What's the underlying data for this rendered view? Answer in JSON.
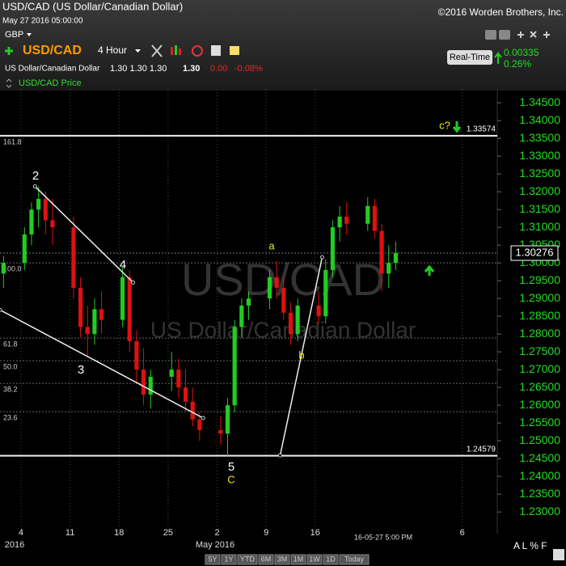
{
  "header": {
    "title": "USD/CAD (US Dollar/Canadian Dollar)",
    "datetime": "May 27 2016 05:00:00",
    "copyright": "©2016 Worden Brothers, Inc."
  },
  "toolbar": {
    "currency": "GBP",
    "symbol": "USD/CAD",
    "interval": "4 Hour",
    "name": "US Dollar/Canadian Dollar",
    "ohl": "1.30 1.30 1.30",
    "last": "1.30",
    "change": "0.00",
    "change_pct": "-0.08%",
    "feed": "Real-Time",
    "rt_change": "0.00335",
    "rt_pct": "0.26%"
  },
  "chart_data": {
    "type": "candlestick",
    "legend": "USD/CAD Price",
    "watermark": "USD/CAD",
    "watermark_subtitle": "US Dollar/Canadian Dollar",
    "up_color": "#22cc22",
    "down_color": "#dd1111",
    "x": [
      "2016-04-01",
      "2016-04-04",
      "2016-04-05",
      "2016-04-06",
      "2016-04-07",
      "2016-04-08",
      "2016-04-11",
      "2016-04-12",
      "2016-04-13",
      "2016-04-14",
      "2016-04-15",
      "2016-04-18",
      "2016-04-19",
      "2016-04-20",
      "2016-04-21",
      "2016-04-22",
      "2016-04-25",
      "2016-04-26",
      "2016-04-27",
      "2016-04-28",
      "2016-04-29",
      "2016-05-02",
      "2016-05-03",
      "2016-05-04",
      "2016-05-05",
      "2016-05-06",
      "2016-05-09",
      "2016-05-10",
      "2016-05-11",
      "2016-05-12",
      "2016-05-13",
      "2016-05-16",
      "2016-05-17",
      "2016-05-18",
      "2016-05-19",
      "2016-05-20",
      "2016-05-23",
      "2016-05-24",
      "2016-05-25",
      "2016-05-26",
      "2016-05-27"
    ],
    "open": [
      1.297,
      1.3,
      1.308,
      1.315,
      1.318,
      1.312,
      1.31,
      1.293,
      1.282,
      1.28,
      1.287,
      1.284,
      1.296,
      1.278,
      1.27,
      1.263,
      1.268,
      1.27,
      1.265,
      1.261,
      1.256,
      1.253,
      1.252,
      1.26,
      1.282,
      1.288,
      1.29,
      1.296,
      1.293,
      1.286,
      1.28,
      1.288,
      1.285,
      1.298,
      1.31,
      1.313,
      1.311,
      1.316,
      1.309,
      1.297,
      1.3
    ],
    "high": [
      1.302,
      1.31,
      1.317,
      1.3215,
      1.32,
      1.318,
      1.313,
      1.296,
      1.288,
      1.29,
      1.292,
      1.299,
      1.298,
      1.281,
      1.276,
      1.27,
      1.275,
      1.273,
      1.27,
      1.265,
      1.258,
      1.257,
      1.262,
      1.284,
      1.29,
      1.292,
      1.298,
      1.3005,
      1.296,
      1.289,
      1.29,
      1.292,
      1.301,
      1.312,
      1.316,
      1.317,
      1.3185,
      1.318,
      1.311,
      1.305,
      1.306
    ],
    "low": [
      1.293,
      1.298,
      1.305,
      1.31,
      1.308,
      1.305,
      1.29,
      1.279,
      1.274,
      1.277,
      1.28,
      1.282,
      1.275,
      1.266,
      1.26,
      1.259,
      1.264,
      1.262,
      1.258,
      1.254,
      1.25,
      1.249,
      1.2458,
      1.258,
      1.279,
      1.284,
      1.287,
      1.29,
      1.284,
      1.277,
      1.278,
      1.283,
      1.283,
      1.296,
      1.306,
      1.308,
      1.309,
      1.307,
      1.292,
      1.293,
      1.298
    ],
    "close": [
      1.3,
      1.308,
      1.315,
      1.318,
      1.312,
      1.31,
      1.293,
      1.282,
      1.28,
      1.287,
      1.284,
      1.296,
      1.278,
      1.27,
      1.263,
      1.268,
      1.27,
      1.265,
      1.261,
      1.256,
      1.253,
      1.252,
      1.26,
      1.282,
      1.288,
      1.29,
      1.296,
      1.293,
      1.286,
      1.28,
      1.288,
      1.285,
      1.298,
      1.31,
      1.313,
      1.311,
      1.316,
      1.309,
      1.297,
      1.3,
      1.3028
    ],
    "xlim": [
      "2016-04-01",
      "2016-06-11"
    ],
    "xticks": [
      {
        "value": "2016-04-04",
        "label": "4"
      },
      {
        "value": "2016-04-11",
        "label": "11"
      },
      {
        "value": "2016-04-18",
        "label": "18"
      },
      {
        "value": "2016-04-25",
        "label": "25"
      },
      {
        "value": "2016-05-02",
        "label": "2"
      },
      {
        "value": "2016-05-09",
        "label": "9"
      },
      {
        "value": "2016-05-16",
        "label": "16"
      },
      {
        "value": "2016-06-06",
        "label": "6"
      }
    ],
    "month_label": "May 2016",
    "year_label": "2016",
    "cursor_label": "16-05-27 5:00 PM",
    "ylim": [
      1.2239,
      1.3489
    ],
    "yticks": [
      {
        "value": 1.345,
        "label": "1.34500"
      },
      {
        "value": 1.34,
        "label": "1.34000"
      },
      {
        "value": 1.335,
        "label": "1.33500"
      },
      {
        "value": 1.33,
        "label": "1.33000"
      },
      {
        "value": 1.325,
        "label": "1.32500"
      },
      {
        "value": 1.32,
        "label": "1.32000"
      },
      {
        "value": 1.315,
        "label": "1.31500"
      },
      {
        "value": 1.31,
        "label": "1.31000"
      },
      {
        "value": 1.305,
        "label": "1.30500"
      },
      {
        "value": 1.3,
        "label": "1.30000"
      },
      {
        "value": 1.295,
        "label": "1.29500"
      },
      {
        "value": 1.29,
        "label": "1.29000"
      },
      {
        "value": 1.285,
        "label": "1.28500"
      },
      {
        "value": 1.28,
        "label": "1.28000"
      },
      {
        "value": 1.275,
        "label": "1.27500"
      },
      {
        "value": 1.27,
        "label": "1.27000"
      },
      {
        "value": 1.265,
        "label": "1.26500"
      },
      {
        "value": 1.26,
        "label": "1.26000"
      },
      {
        "value": 1.255,
        "label": "1.25500"
      },
      {
        "value": 1.25,
        "label": "1.25000"
      },
      {
        "value": 1.245,
        "label": "1.24500"
      },
      {
        "value": 1.24,
        "label": "1.24000"
      },
      {
        "value": 1.235,
        "label": "1.23500"
      },
      {
        "value": 1.23,
        "label": "1.23000"
      }
    ],
    "levels": [
      {
        "value": 1.33574,
        "label": "1.33574"
      },
      {
        "value": 1.24579,
        "label": "1.24579"
      }
    ],
    "fib_levels": [
      {
        "label": "161.8",
        "price": 1.3357
      },
      {
        "label": "100.0",
        "price": 1.3
      },
      {
        "label": "61.8",
        "price": 1.27886
      },
      {
        "label": "50.0",
        "price": 1.2725
      },
      {
        "label": "38.2",
        "price": 1.26614
      },
      {
        "label": "23.6",
        "price": 1.25818
      }
    ],
    "last_price": 1.30276,
    "trend_lines": [
      {
        "x": [
          "2016-04-06",
          "2016-04-20"
        ],
        "y": [
          1.3215,
          1.2945
        ]
      },
      {
        "x": [
          "2016-04-01",
          "2016-04-30"
        ],
        "y": [
          1.2868,
          1.2564
        ]
      },
      {
        "x": [
          "2016-05-11",
          "2016-05-17"
        ],
        "y": [
          1.2459,
          1.3016
        ]
      }
    ],
    "wave_labels": [
      "2",
      "4",
      "3",
      "5",
      "C",
      "a",
      "b",
      "c?"
    ]
  },
  "footer": {
    "ranges": [
      "5Y",
      "1Y",
      "YTD",
      "6M",
      "3M",
      "1M",
      "1W",
      "1D",
      "Today"
    ],
    "scale_options": "A L % F"
  }
}
